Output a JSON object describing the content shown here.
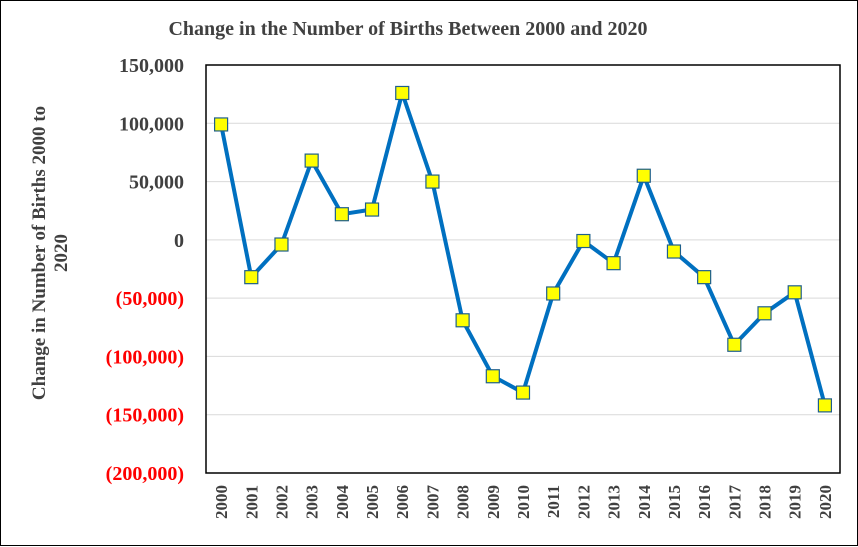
{
  "chart_data": {
    "type": "line",
    "title": "Change in the Number of Births Between 2000 and 2020",
    "xlabel": "",
    "ylabel_lines": [
      "Change in Number of Births 2000 to",
      "2020"
    ],
    "x": [
      "2000",
      "2001",
      "2002",
      "2003",
      "2004",
      "2005",
      "2006",
      "2007",
      "2008",
      "2009",
      "2010",
      "2011",
      "2012",
      "2013",
      "2014",
      "2015",
      "2016",
      "2017",
      "2018",
      "2019",
      "2020"
    ],
    "series": [
      {
        "values": [
          99000,
          -32000,
          -4000,
          68000,
          22000,
          26000,
          126000,
          50000,
          -69000,
          -117000,
          -131000,
          -46000,
          -1000,
          -20000,
          55000,
          -10000,
          -32000,
          -90000,
          -63000,
          -45000,
          -142000
        ]
      }
    ],
    "ylim": [
      -200000,
      150000
    ],
    "yticks": [
      150000,
      100000,
      50000,
      0,
      -50000,
      -100000,
      -150000,
      -200000
    ],
    "ytick_labels": [
      "150,000",
      "100,000",
      "50,000",
      "0",
      "(50,000)",
      "(100,000)",
      "(150,000)",
      "(200,000)"
    ],
    "grid": true,
    "legend": "none"
  },
  "colors": {
    "line": "#0070C0",
    "marker_fill": "#FFFF00",
    "marker_stroke": "#1F5F8B",
    "positive_tick": "#404040",
    "negative_tick": "#FF0000",
    "grid": "#D9D9D9"
  }
}
